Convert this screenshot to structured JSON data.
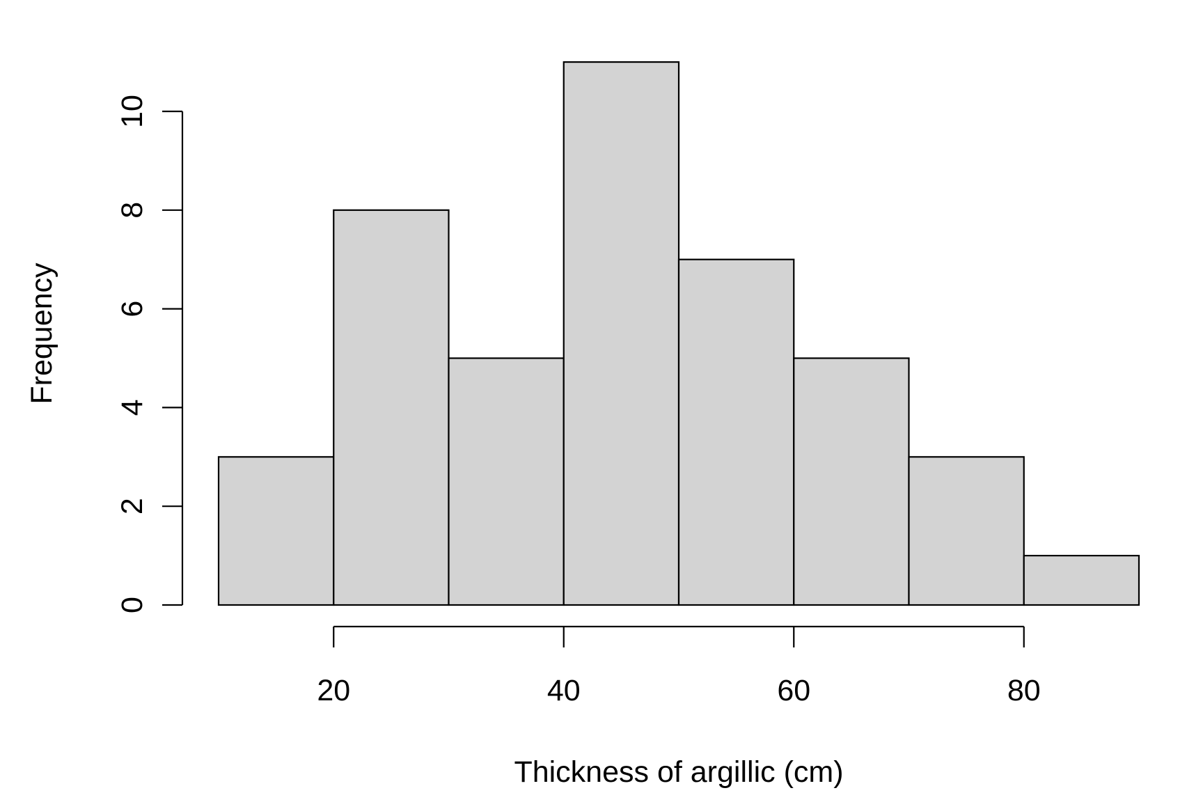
{
  "chart_data": {
    "type": "bar",
    "subtype": "histogram",
    "title": "",
    "xlabel": "Thickness of argillic (cm)",
    "ylabel": "Frequency",
    "bins": [
      {
        "start": 10,
        "end": 20,
        "count": 3
      },
      {
        "start": 20,
        "end": 30,
        "count": 8
      },
      {
        "start": 30,
        "end": 40,
        "count": 5
      },
      {
        "start": 40,
        "end": 50,
        "count": 11
      },
      {
        "start": 50,
        "end": 60,
        "count": 7
      },
      {
        "start": 60,
        "end": 70,
        "count": 5
      },
      {
        "start": 70,
        "end": 80,
        "count": 3
      },
      {
        "start": 80,
        "end": 90,
        "count": 1
      }
    ],
    "xlim": [
      10,
      90
    ],
    "ylim": [
      0,
      11
    ],
    "xticks": [
      20,
      40,
      60,
      80
    ],
    "xtick_labels": [
      "20",
      "40",
      "60",
      "80"
    ],
    "yticks": [
      0,
      2,
      4,
      6,
      8,
      10
    ],
    "ytick_labels": [
      "0",
      "2",
      "4",
      "6",
      "8",
      "10"
    ],
    "grid": false,
    "legend": "none",
    "colors": {
      "bar_fill": "#d3d3d3",
      "bar_stroke": "#000000"
    }
  }
}
